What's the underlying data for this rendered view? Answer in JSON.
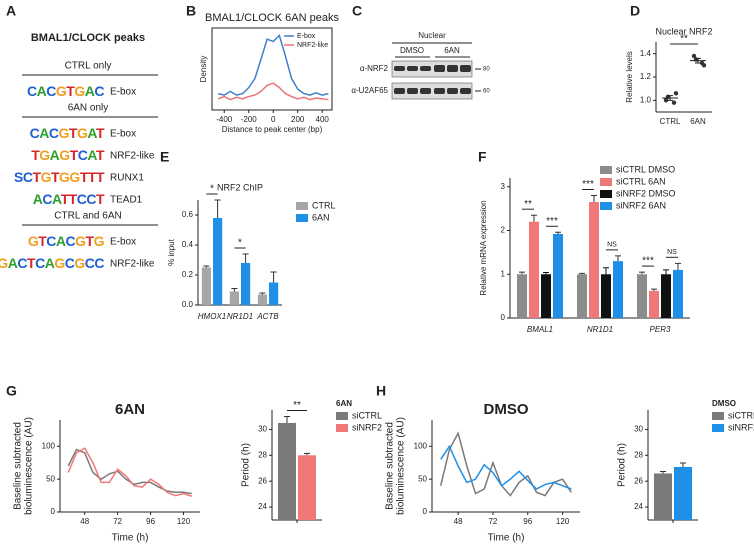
{
  "panel_labels": [
    "A",
    "B",
    "C",
    "D",
    "E",
    "F",
    "G",
    "H"
  ],
  "motifs": {
    "title": "BMAL1/CLOCK peaks",
    "groups": [
      {
        "name": "CTRL only",
        "motifs": [
          {
            "logo": "CACGTGAC",
            "label": "E-box"
          }
        ]
      },
      {
        "name": "6AN only",
        "motifs": [
          {
            "logo": "CACGTGAT",
            "label": "E-box"
          },
          {
            "logo": "TGAGTCAT",
            "label": "NRF2-like"
          },
          {
            "logo": "SCTGTGGTTT",
            "label": "RUNX1"
          },
          {
            "logo": "ACATTCCT",
            "label": "TEAD1"
          }
        ]
      },
      {
        "name": "CTRL and 6AN",
        "motifs": [
          {
            "logo": "GTCACGTG",
            "label": "E-box"
          },
          {
            "logo": "TGACTCAGCGCC",
            "label": "NRF2-like"
          }
        ]
      }
    ]
  },
  "blot": {
    "header": "Nuclear",
    "lanes": [
      "DMSO",
      "6AN"
    ],
    "rows": [
      "α-NRF2",
      "α-U2AF65"
    ],
    "markers": [
      "80",
      "60"
    ]
  },
  "chart_data": [
    {
      "type": "line",
      "title": "BMAL1/CLOCK 6AN peaks",
      "xlabel": "Distance to peak center (bp)",
      "ylabel": "Density",
      "x": [
        -450,
        -400,
        -350,
        -300,
        -250,
        -200,
        -150,
        -100,
        -50,
        0,
        50,
        100,
        150,
        200,
        250,
        300,
        350,
        400,
        450
      ],
      "series": [
        {
          "name": "E-box",
          "color": "#3f7fc8",
          "values": [
            0.22,
            0.2,
            0.25,
            0.2,
            0.22,
            0.3,
            0.42,
            0.68,
            0.95,
            0.92,
            1.0,
            0.72,
            0.42,
            0.28,
            0.22,
            0.2,
            0.23,
            0.2,
            0.22
          ]
        },
        {
          "name": "NRF2-like",
          "color": "#e8757a",
          "values": [
            0.15,
            0.18,
            0.14,
            0.17,
            0.15,
            0.18,
            0.2,
            0.25,
            0.33,
            0.36,
            0.3,
            0.22,
            0.18,
            0.15,
            0.17,
            0.14,
            0.16,
            0.15,
            0.14
          ]
        }
      ],
      "xlim": [
        -500,
        480
      ],
      "ylim": [
        0,
        1.1
      ],
      "xticks": [
        -400,
        -200,
        0,
        200,
        400
      ],
      "legend": "upper right"
    },
    {
      "type": "dot",
      "title": "Nuclear NRF2",
      "ylabel": "Relative levels",
      "categories": [
        "CTRL",
        "6AN"
      ],
      "values": [
        [
          1.0,
          0.98,
          1.03,
          1.06
        ],
        [
          1.38,
          1.32,
          1.35,
          1.3
        ]
      ],
      "means": [
        1.02,
        1.34
      ],
      "errors": [
        0.02,
        0.02
      ],
      "color": "#333333",
      "ylim": [
        0.9,
        1.5
      ],
      "yticks": [
        {
          "value": 1,
          "label": "1.0"
        },
        1.2,
        1.4
      ],
      "annotations": [
        "**"
      ]
    },
    {
      "type": "bar",
      "title": "NRF2 ChIP",
      "ylabel": "% input",
      "categories": [
        "HMOX1",
        "NR1D1",
        "ACTB"
      ],
      "series": [
        {
          "name": "CTRL",
          "color": "#a6a6a6",
          "values": [
            0.25,
            0.09,
            0.07
          ],
          "errors": [
            0.01,
            0.02,
            0.01
          ]
        },
        {
          "name": "6AN",
          "color": "#1e90e8",
          "values": [
            0.58,
            0.28,
            0.15
          ],
          "errors": [
            0.12,
            0.06,
            0.07
          ]
        }
      ],
      "ylim": [
        0,
        0.7
      ],
      "yticks": [
        {
          "value": 0,
          "label": "0.0"
        },
        0.2,
        0.4,
        0.6
      ],
      "legend": "right",
      "annotations": [
        "*",
        "*"
      ]
    },
    {
      "type": "bar",
      "ylabel": "Relative mRNA expression",
      "categories": [
        "BMAL1",
        "NR1D1",
        "PER3"
      ],
      "series": [
        {
          "name": "siCTRL DMSO",
          "color": "#8c8c8c",
          "values": [
            1,
            1,
            1
          ],
          "errors": [
            0.05,
            0.02,
            0.05
          ]
        },
        {
          "name": "siCTRL 6AN",
          "color": "#f07878",
          "values": [
            2.2,
            2.65,
            0.62
          ],
          "errors": [
            0.15,
            0.15,
            0.04
          ]
        },
        {
          "name": "siNRF2 DMSO",
          "color": "#111111",
          "values": [
            1,
            1,
            1
          ],
          "errors": [
            0.04,
            0.15,
            0.1
          ]
        },
        {
          "name": "siNRF2 6AN",
          "color": "#1e90e8",
          "values": [
            1.92,
            1.3,
            1.1
          ],
          "errors": [
            0.04,
            0.12,
            0.15
          ]
        }
      ],
      "ylim": [
        0,
        3.2
      ],
      "yticks": [
        0,
        1,
        2,
        3
      ],
      "legend": "upper right",
      "annotations": [
        "**",
        "***",
        "***",
        "NS",
        "***",
        "NS"
      ]
    },
    {
      "type": "line",
      "title": "6AN",
      "xlabel": "Time (h)",
      "ylabel": [
        "Baseline subtracted",
        "bioluminescence (AU)"
      ],
      "x": [
        36,
        42,
        48,
        54,
        60,
        66,
        72,
        78,
        84,
        90,
        96,
        102,
        108,
        114,
        120,
        126
      ],
      "series": [
        {
          "name": "siCTRL",
          "color": "#7a7a7a",
          "values": [
            70,
            95,
            90,
            60,
            50,
            58,
            62,
            50,
            42,
            45,
            45,
            38,
            32,
            30,
            30,
            28
          ]
        },
        {
          "name": "siNRF2",
          "color": "#f07878",
          "values": [
            60,
            90,
            97,
            75,
            45,
            45,
            65,
            55,
            40,
            38,
            50,
            42,
            30,
            25,
            28,
            24
          ]
        }
      ],
      "xlim": [
        30,
        132
      ],
      "ylim": [
        0,
        140
      ],
      "xticks": [
        48,
        72,
        96,
        120
      ],
      "yticks": [
        0,
        50,
        100
      ]
    },
    {
      "type": "bar",
      "ylabel": "Period (h)",
      "categories": [
        null
      ],
      "legend_title": "6AN",
      "series": [
        {
          "name": "siCTRL",
          "color": "#7a7a7a",
          "values": [
            30.5
          ],
          "errors": [
            0.5
          ]
        },
        {
          "name": "siNRF2",
          "color": "#f07878",
          "values": [
            28.0
          ],
          "errors": [
            0.15
          ]
        }
      ],
      "ylim": [
        23,
        31.5
      ],
      "yticks": [
        24,
        26,
        28,
        30
      ],
      "legend": "right",
      "annotations": [
        "**"
      ]
    },
    {
      "type": "line",
      "title": "DMSO",
      "xlabel": "Time (h)",
      "ylabel": [
        "Baseline subtracted",
        "bioluminescence (AU)"
      ],
      "x": [
        36,
        42,
        48,
        54,
        60,
        66,
        72,
        78,
        84,
        90,
        96,
        102,
        108,
        114,
        120,
        126
      ],
      "series": [
        {
          "name": "siCTRL",
          "color": "#7a7a7a",
          "values": [
            40,
            95,
            120,
            70,
            28,
            35,
            75,
            40,
            25,
            45,
            55,
            30,
            25,
            45,
            50,
            30
          ]
        },
        {
          "name": "siNRF2",
          "color": "#1e90e8",
          "values": [
            80,
            100,
            70,
            45,
            50,
            72,
            60,
            40,
            50,
            62,
            48,
            35,
            42,
            45,
            40,
            35
          ]
        }
      ],
      "xlim": [
        30,
        132
      ],
      "ylim": [
        0,
        140
      ],
      "xticks": [
        48,
        72,
        96,
        120
      ],
      "yticks": [
        0,
        50,
        100
      ]
    },
    {
      "type": "bar",
      "ylabel": "Period (h)",
      "categories": [
        null
      ],
      "legend_title": "DMSO",
      "series": [
        {
          "name": "siCTRL",
          "color": "#7a7a7a",
          "values": [
            26.6
          ],
          "errors": [
            0.15
          ]
        },
        {
          "name": "siNRF2",
          "color": "#1e90e8",
          "values": [
            27.1
          ],
          "errors": [
            0.3
          ]
        }
      ],
      "ylim": [
        23,
        31.5
      ],
      "yticks": [
        24,
        26,
        28,
        30
      ],
      "legend": "right"
    }
  ]
}
